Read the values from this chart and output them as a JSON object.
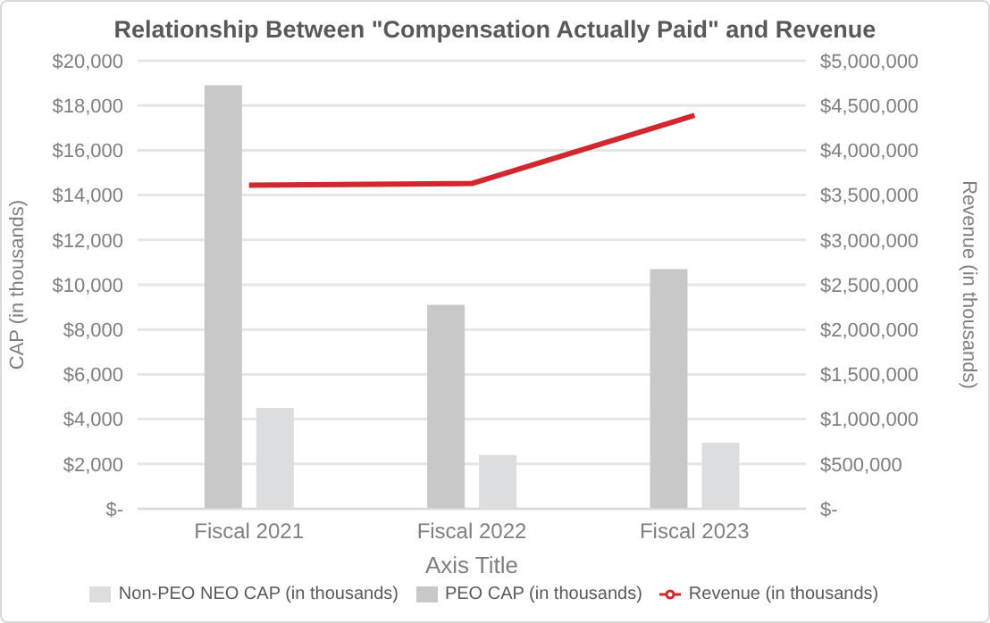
{
  "chart_data": {
    "type": "bar",
    "title": "Relationship Between \"Compensation Actually Paid\" and Revenue",
    "xlabel": "Axis Title",
    "ylabel": "CAP (in thousands)",
    "y2label": "Revenue (in thousands)",
    "categories": [
      "Fiscal 2021",
      "Fiscal 2022",
      "Fiscal 2023"
    ],
    "series": [
      {
        "name": "PEO CAP (in thousands)",
        "color": "#c8c8c9",
        "values": [
          18900,
          9100,
          10700
        ]
      },
      {
        "name": "Non-PEO NEO CAP (in thousands)",
        "color": "#dcddde",
        "values": [
          4500,
          2400,
          2950
        ]
      },
      {
        "name": "Revenue (in thousands)",
        "type": "line",
        "axis": "y2",
        "color": "#d0282e",
        "values": [
          3610000,
          3630000,
          4390000
        ]
      }
    ],
    "ylim": [
      0,
      20000
    ],
    "yticks": [
      {
        "value": 0,
        "label": "$-"
      },
      {
        "value": 2000,
        "label": "$2,000"
      },
      {
        "value": 4000,
        "label": "$4,000"
      },
      {
        "value": 6000,
        "label": "$6,000"
      },
      {
        "value": 8000,
        "label": "$8,000"
      },
      {
        "value": 10000,
        "label": "$10,000"
      },
      {
        "value": 12000,
        "label": "$12,000"
      },
      {
        "value": 14000,
        "label": "$14,000"
      },
      {
        "value": 16000,
        "label": "$16,000"
      },
      {
        "value": 18000,
        "label": "$18,000"
      },
      {
        "value": 20000,
        "label": "$20,000"
      }
    ],
    "y2lim": [
      0,
      5000000
    ],
    "y2ticks": [
      {
        "value": 0,
        "label": "$-"
      },
      {
        "value": 500000,
        "label": "$500,000"
      },
      {
        "value": 1000000,
        "label": "$1,000,000"
      },
      {
        "value": 1500000,
        "label": "$1,500,000"
      },
      {
        "value": 2000000,
        "label": "$2,000,000"
      },
      {
        "value": 2500000,
        "label": "$2,500,000"
      },
      {
        "value": 3000000,
        "label": "$3,000,000"
      },
      {
        "value": 3500000,
        "label": "$3,500,000"
      },
      {
        "value": 4000000,
        "label": "$4,000,000"
      },
      {
        "value": 4500000,
        "label": "$4,500,000"
      },
      {
        "value": 5000000,
        "label": "$5,000,000"
      }
    ],
    "grid": "y",
    "legend": "bottom",
    "marker": "none"
  }
}
